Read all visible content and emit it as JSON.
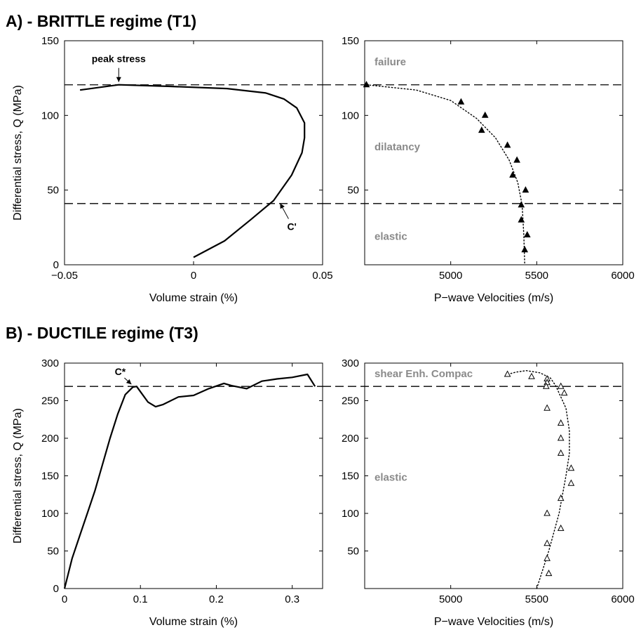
{
  "panels": [
    {
      "label": "A) - BRITTLE regime (T1)"
    },
    {
      "label": "B) - DUCTILE regime (T3)"
    }
  ],
  "chart_data": [
    {
      "type": "line",
      "panel": "A",
      "xlabel": "Volume strain (%)",
      "ylabel": "Differential stress, Q (MPa)",
      "xlim": [
        -0.05,
        0.05
      ],
      "ylim": [
        0,
        150
      ],
      "xticks": [
        -0.05,
        0,
        0.05
      ],
      "xtick_labels": [
        "−0.05",
        "0",
        "0.05"
      ],
      "yticks": [
        0,
        50,
        100,
        150
      ],
      "ytick_labels": [
        "0",
        "50",
        "100",
        "150"
      ],
      "series": [
        {
          "style": "solid",
          "x": [
            0.0,
            0.012,
            0.022,
            0.031,
            0.038,
            0.042,
            0.043,
            0.043,
            0.04,
            0.035,
            0.028,
            0.013,
            -0.01,
            -0.029,
            -0.044
          ],
          "y": [
            5,
            16,
            30,
            43,
            60,
            75,
            85,
            95,
            105,
            111,
            115,
            118,
            119.5,
            120.5,
            117
          ]
        }
      ],
      "hlines": [
        120.5,
        41
      ],
      "annotations": [
        {
          "text": "peak stress",
          "x": -0.029,
          "y": 120.5
        },
        {
          "text": "C'",
          "x": 0.033,
          "y": 43
        }
      ],
      "grid": false
    },
    {
      "type": "scatter",
      "panel": "A",
      "xlabel": "P−wave Velocities (m/s)",
      "xlim": [
        4500,
        6000
      ],
      "ylim": [
        0,
        150
      ],
      "xticks": [
        5000,
        5500,
        6000
      ],
      "xtick_labels": [
        "5000",
        "5500",
        "6000"
      ],
      "yticks": [
        50,
        100,
        150
      ],
      "ytick_labels": [
        "50",
        "100",
        "150"
      ],
      "marker": "filled-triangle",
      "points": {
        "x": [
          4510,
          5060,
          5200,
          5180,
          5330,
          5385,
          5360,
          5435,
          5410,
          5410,
          5445,
          5430
        ],
        "y": [
          120.5,
          109,
          100,
          90,
          80,
          70,
          60,
          50,
          40,
          30,
          20,
          10
        ]
      },
      "fit": {
        "style": "dotted",
        "x": [
          4510,
          4800,
          5000,
          5150,
          5260,
          5340,
          5390,
          5415,
          5425,
          5430
        ],
        "y": [
          120.5,
          117,
          110,
          98,
          85,
          70,
          55,
          40,
          20,
          0
        ]
      },
      "hlines": [
        120.5,
        41
      ],
      "region_labels": [
        {
          "text": "failure",
          "y": 136
        },
        {
          "text": "dilatancy",
          "y": 79
        },
        {
          "text": "elastic",
          "y": 19
        }
      ],
      "grid": false
    },
    {
      "type": "line",
      "panel": "B",
      "xlabel": "Volume strain (%)",
      "ylabel": "Differential stress, Q (MPa)",
      "xlim": [
        0,
        0.34
      ],
      "ylim": [
        0,
        300
      ],
      "xticks": [
        0,
        0.1,
        0.2,
        0.3
      ],
      "xtick_labels": [
        "0",
        "0.1",
        "0.2",
        "0.3"
      ],
      "yticks": [
        0,
        50,
        100,
        150,
        200,
        250,
        300
      ],
      "ytick_labels": [
        "0",
        "50",
        "100",
        "150",
        "200",
        "250",
        "300"
      ],
      "series": [
        {
          "style": "solid",
          "x": [
            0,
            0.005,
            0.01,
            0.02,
            0.03,
            0.04,
            0.05,
            0.06,
            0.07,
            0.08,
            0.09,
            0.095,
            0.1,
            0.11,
            0.12,
            0.13,
            0.15,
            0.17,
            0.19,
            0.21,
            0.22,
            0.24,
            0.26,
            0.28,
            0.3,
            0.32,
            0.33
          ],
          "y": [
            0,
            20,
            40,
            70,
            100,
            130,
            165,
            200,
            232,
            258,
            268,
            269,
            262,
            248,
            242,
            245,
            255,
            257,
            266,
            273,
            270,
            266,
            276,
            279,
            281,
            285,
            269
          ]
        }
      ],
      "hlines": [
        269
      ],
      "annotations": [
        {
          "text": "C*",
          "x": 0.09,
          "y": 269
        }
      ],
      "grid": false
    },
    {
      "type": "scatter",
      "panel": "B",
      "xlabel": "P−wave Velocities (m/s)",
      "xlim": [
        4500,
        6000
      ],
      "ylim": [
        0,
        300
      ],
      "xticks": [
        5000,
        5500,
        6000
      ],
      "xtick_labels": [
        "5000",
        "5500",
        "6000"
      ],
      "yticks": [
        50,
        100,
        150,
        200,
        250,
        300
      ],
      "ytick_labels": [
        "50",
        "100",
        "150",
        "200",
        "250",
        "300"
      ],
      "marker": "open-triangle",
      "points": {
        "x": [
          5330,
          5470,
          5560,
          5560,
          5555,
          5640,
          5660,
          5560,
          5640,
          5640,
          5640,
          5700,
          5700,
          5640,
          5560,
          5640,
          5560,
          5560,
          5570
        ],
        "y": [
          285,
          282,
          279,
          274,
          269,
          269,
          260,
          240,
          220,
          200,
          180,
          160,
          140,
          120,
          100,
          80,
          60,
          40,
          20
        ]
      },
      "fit": {
        "style": "dotted",
        "x": [
          5500,
          5570,
          5630,
          5670,
          5690,
          5690,
          5670,
          5640,
          5610,
          5580,
          5520,
          5440,
          5380,
          5330
        ],
        "y": [
          0,
          50,
          100,
          150,
          180,
          210,
          240,
          255,
          270,
          280,
          287,
          290,
          288,
          285
        ]
      },
      "hlines": [
        269
      ],
      "region_labels": [
        {
          "text": "shear Enh. Compac",
          "y": 286
        },
        {
          "text": "elastic",
          "y": 148
        }
      ],
      "grid": false
    }
  ]
}
